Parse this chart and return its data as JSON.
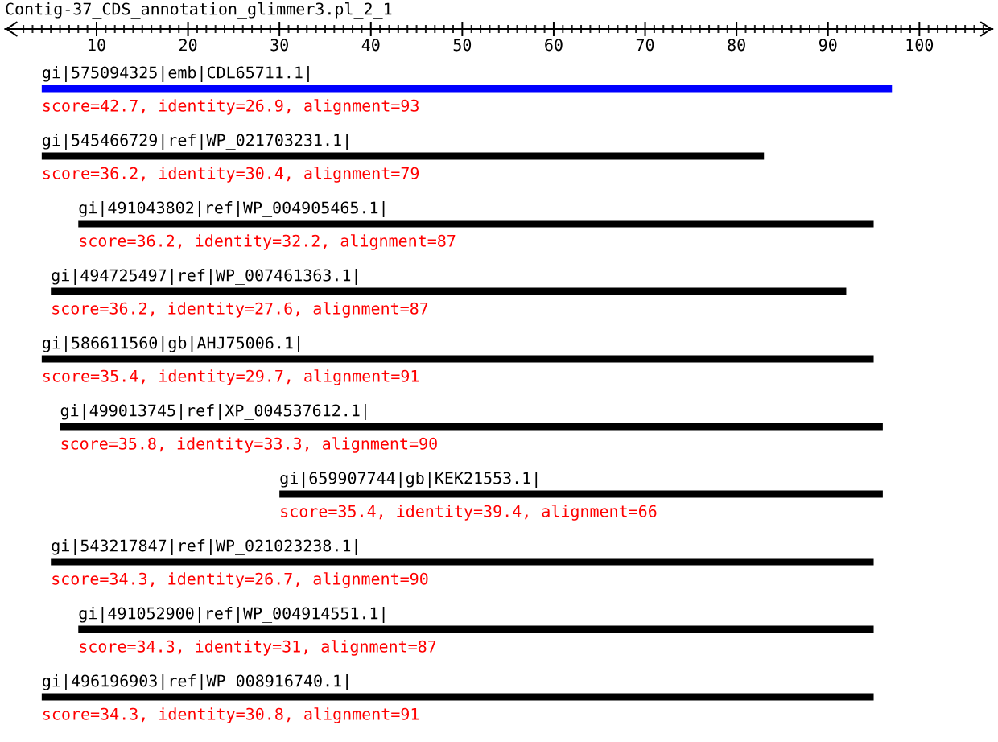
{
  "chart_data": {
    "type": "bar",
    "orientation": "horizontal",
    "title": "Contig-37_CDS_annotation_glimmer3.pl_2_1",
    "categories": [
      "gi|575094325|emb|CDL65711.1|",
      "gi|545466729|ref|WP_021703231.1|",
      "gi|491043802|ref|WP_004905465.1|",
      "gi|494725497|ref|WP_007461363.1|",
      "gi|586611560|gb|AHJ75006.1|",
      "gi|499013745|ref|XP_004537612.1|",
      "gi|659907744|gb|KEK21553.1|",
      "gi|543217847|ref|WP_021023238.1|",
      "gi|491052900|ref|WP_004914551.1|",
      "gi|496196903|ref|WP_008916740.1|"
    ],
    "base": [
      4,
      4,
      8,
      5,
      4,
      6,
      30,
      5,
      8,
      4
    ],
    "values": [
      93,
      79,
      87,
      87,
      91,
      90,
      66,
      90,
      87,
      91
    ],
    "colors": [
      "#0000ff",
      "#000000",
      "#000000",
      "#000000",
      "#000000",
      "#000000",
      "#000000",
      "#000000",
      "#000000",
      "#000000"
    ],
    "annotations": [
      "score=42.7, identity=26.9, alignment=93",
      "score=36.2, identity=30.4, alignment=79",
      "score=36.2, identity=32.2, alignment=87",
      "score=36.2, identity=27.6, alignment=87",
      "score=35.4, identity=29.7, alignment=91",
      "score=35.8, identity=33.3, alignment=90",
      "score=35.4, identity=39.4, alignment=66",
      "score=34.3, identity=26.7, alignment=90",
      "score=34.3, identity=31, alignment=87",
      "score=34.3, identity=30.8, alignment=91"
    ],
    "xlim": [
      0,
      108
    ],
    "xticks": [
      {
        "value": 2,
        "label": null
      },
      {
        "value": 3,
        "label": null
      },
      {
        "value": 4,
        "label": null
      },
      {
        "value": 5,
        "label": null
      },
      {
        "value": 6,
        "label": null
      },
      {
        "value": 7,
        "label": null
      },
      {
        "value": 8,
        "label": null
      },
      {
        "value": 9,
        "label": null
      },
      10,
      {
        "value": 11,
        "label": null
      },
      {
        "value": 12,
        "label": null
      },
      {
        "value": 13,
        "label": null
      },
      {
        "value": 14,
        "label": null
      },
      {
        "value": 15,
        "label": null
      },
      {
        "value": 16,
        "label": null
      },
      {
        "value": 17,
        "label": null
      },
      {
        "value": 18,
        "label": null
      },
      {
        "value": 19,
        "label": null
      },
      20,
      {
        "value": 21,
        "label": null
      },
      {
        "value": 22,
        "label": null
      },
      {
        "value": 23,
        "label": null
      },
      {
        "value": 24,
        "label": null
      },
      {
        "value": 25,
        "label": null
      },
      {
        "value": 26,
        "label": null
      },
      {
        "value": 27,
        "label": null
      },
      {
        "value": 28,
        "label": null
      },
      {
        "value": 29,
        "label": null
      },
      30,
      {
        "value": 31,
        "label": null
      },
      {
        "value": 32,
        "label": null
      },
      {
        "value": 33,
        "label": null
      },
      {
        "value": 34,
        "label": null
      },
      {
        "value": 35,
        "label": null
      },
      {
        "value": 36,
        "label": null
      },
      {
        "value": 37,
        "label": null
      },
      {
        "value": 38,
        "label": null
      },
      {
        "value": 39,
        "label": null
      },
      40,
      {
        "value": 41,
        "label": null
      },
      {
        "value": 42,
        "label": null
      },
      {
        "value": 43,
        "label": null
      },
      {
        "value": 44,
        "label": null
      },
      {
        "value": 45,
        "label": null
      },
      {
        "value": 46,
        "label": null
      },
      {
        "value": 47,
        "label": null
      },
      {
        "value": 48,
        "label": null
      },
      {
        "value": 49,
        "label": null
      },
      50,
      {
        "value": 51,
        "label": null
      },
      {
        "value": 52,
        "label": null
      },
      {
        "value": 53,
        "label": null
      },
      {
        "value": 54,
        "label": null
      },
      {
        "value": 55,
        "label": null
      },
      {
        "value": 56,
        "label": null
      },
      {
        "value": 57,
        "label": null
      },
      {
        "value": 58,
        "label": null
      },
      {
        "value": 59,
        "label": null
      },
      60,
      {
        "value": 61,
        "label": null
      },
      {
        "value": 62,
        "label": null
      },
      {
        "value": 63,
        "label": null
      },
      {
        "value": 64,
        "label": null
      },
      {
        "value": 65,
        "label": null
      },
      {
        "value": 66,
        "label": null
      },
      {
        "value": 67,
        "label": null
      },
      {
        "value": 68,
        "label": null
      },
      {
        "value": 69,
        "label": null
      },
      70,
      {
        "value": 71,
        "label": null
      },
      {
        "value": 72,
        "label": null
      },
      {
        "value": 73,
        "label": null
      },
      {
        "value": 74,
        "label": null
      },
      {
        "value": 75,
        "label": null
      },
      {
        "value": 76,
        "label": null
      },
      {
        "value": 77,
        "label": null
      },
      {
        "value": 78,
        "label": null
      },
      {
        "value": 79,
        "label": null
      },
      80,
      {
        "value": 81,
        "label": null
      },
      {
        "value": 82,
        "label": null
      },
      {
        "value": 83,
        "label": null
      },
      {
        "value": 84,
        "label": null
      },
      {
        "value": 85,
        "label": null
      },
      {
        "value": 86,
        "label": null
      },
      {
        "value": 87,
        "label": null
      },
      {
        "value": 88,
        "label": null
      },
      {
        "value": 89,
        "label": null
      },
      90,
      {
        "value": 91,
        "label": null
      },
      {
        "value": 92,
        "label": null
      },
      {
        "value": 93,
        "label": null
      },
      {
        "value": 94,
        "label": null
      },
      {
        "value": 95,
        "label": null
      },
      {
        "value": 96,
        "label": null
      },
      {
        "value": 97,
        "label": null
      },
      {
        "value": 98,
        "label": null
      },
      {
        "value": 99,
        "label": null
      },
      100,
      {
        "value": 101,
        "label": null
      },
      {
        "value": 102,
        "label": null
      },
      {
        "value": 103,
        "label": null
      },
      {
        "value": 104,
        "label": null
      },
      {
        "value": 105,
        "label": null
      },
      {
        "value": 106,
        "label": null
      },
      {
        "value": 107,
        "label": null
      }
    ]
  }
}
